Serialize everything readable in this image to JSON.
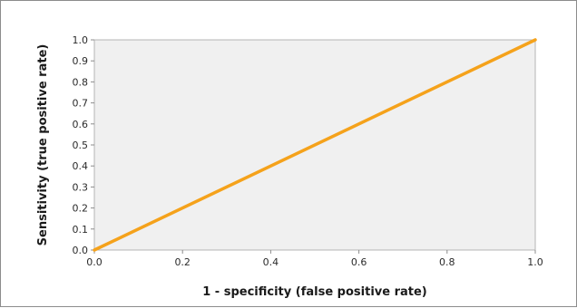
{
  "chart_data": {
    "type": "line",
    "title": "",
    "xlabel": "1 - specificity (false positive rate)",
    "ylabel": "Sensitivity (true positive  rate)",
    "xlim": [
      0,
      1.0
    ],
    "ylim": [
      0,
      1.0
    ],
    "x_ticks": [
      "0.0",
      "0.2",
      "0.4",
      "0.6",
      "0.8",
      "1.0"
    ],
    "y_ticks": [
      "0.0",
      "0.1",
      "0.2",
      "0.3",
      "0.4",
      "0.5",
      "0.6",
      "0.7",
      "0.8",
      "0.9",
      "1.0"
    ],
    "grid": false,
    "plot_background": "#f0f0f0",
    "series": [
      {
        "color": "#f5a21b",
        "x": [
          0.0,
          1.0
        ],
        "y": [
          0.0,
          1.0
        ]
      }
    ]
  }
}
